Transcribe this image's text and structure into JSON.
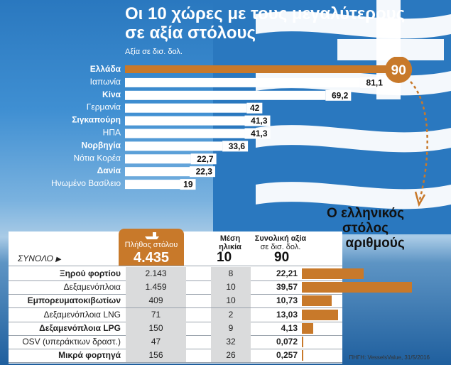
{
  "header": {
    "title_line1": "Οι 10 χώρες με τους μεγαλύτερους",
    "title_line2": "σε αξία στόλους",
    "subtitle": "Αξία σε δισ. δολ."
  },
  "chart_data": {
    "type": "bar",
    "title": "Οι 10 χώρες με τους μεγαλύτερους σε αξία στόλους",
    "subtitle": "Αξία σε δισ. δολ.",
    "categories": [
      "Ελλάδα",
      "Ιαπωνία",
      "Κίνα",
      "Γερμανία",
      "Σιγκαπούρη",
      "ΗΠΑ",
      "Νορβηγία",
      "Νότια Κορέα",
      "Δανία",
      "Ηνωμένο Βασίλειο"
    ],
    "values": [
      90,
      81.1,
      69.2,
      42,
      41.3,
      41.3,
      33.6,
      22.7,
      22.3,
      19
    ],
    "value_labels": [
      "90",
      "81,1",
      "69,2",
      "42",
      "41,3",
      "41,3",
      "33,6",
      "22,7",
      "22,3",
      "19"
    ],
    "bold_categories": [
      "Ελλάδα",
      "Κίνα",
      "Σιγκαπούρη",
      "Νορβηγία",
      "Δανία"
    ],
    "orientation": "horizontal",
    "highlight_category": "Ελλάδα",
    "colors": {
      "highlight": "#c8792a",
      "bars": "#ffffff",
      "label_bg": "#ffffff"
    }
  },
  "callout": {
    "line1": "Ο ελληνικός",
    "line2": "στόλος",
    "line3": "σε αριθμούς"
  },
  "table": {
    "total_label": "ΣΥΝΟΛΟ",
    "col1_header": "Πλήθος στόλου",
    "col2_header_line1": "Μέση",
    "col2_header_line2": "ηλικία",
    "col3_header_line1": "Συνολική αξία",
    "col3_header_line2": "σε δισ. δολ.",
    "total_count": "4.435",
    "total_age": "10",
    "total_value": "90",
    "rows": [
      {
        "name": "Ξηρού φορτίου",
        "count": "2.143",
        "age": "8",
        "value": "22,21",
        "value_num": 22.21,
        "bold": true
      },
      {
        "name": "Δεξαμενόπλοια",
        "count": "1.459",
        "age": "10",
        "value": "39,57",
        "value_num": 39.57,
        "bold": false
      },
      {
        "name": "Εμπορευματοκιβωτίων",
        "count": "409",
        "age": "10",
        "value": "10,73",
        "value_num": 10.73,
        "bold": true
      },
      {
        "name": "Δεξαμενόπλοια LNG",
        "count": "71",
        "age": "2",
        "value": "13,03",
        "value_num": 13.03,
        "bold": false
      },
      {
        "name": "Δεξαμενόπλοια LPG",
        "count": "150",
        "age": "9",
        "value": "4,13",
        "value_num": 4.13,
        "bold": true
      },
      {
        "name": "OSV (υπεράκτιων δραστ.)",
        "count": "47",
        "age": "32",
        "value": "0,072",
        "value_num": 0.072,
        "bold": false
      },
      {
        "name": "Μικρά φορτηγά",
        "count": "156",
        "age": "26",
        "value": "0,257",
        "value_num": 0.257,
        "bold": true
      }
    ]
  },
  "source": "ΠΗΓΗ: VesselsValue, 31/5/2016"
}
